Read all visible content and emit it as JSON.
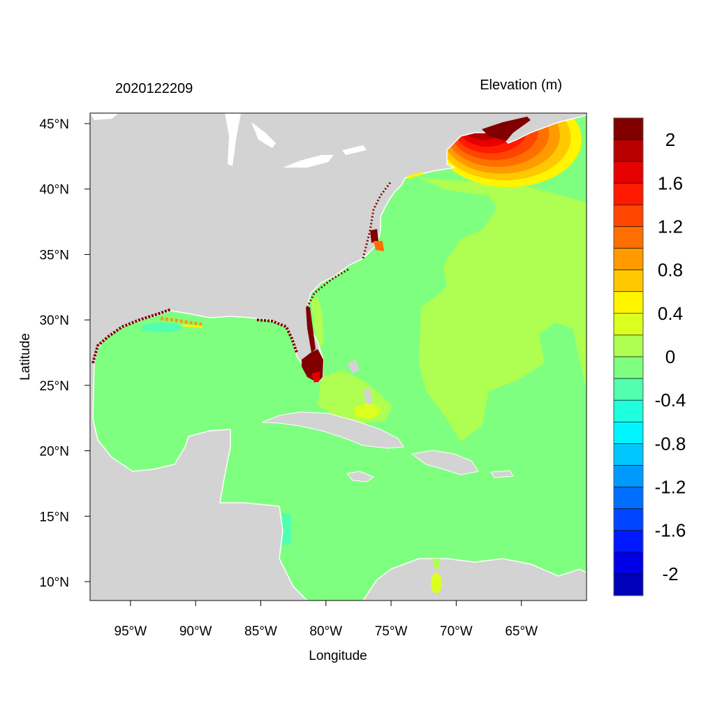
{
  "title_left": "2020122209",
  "title_right": "Elevation (m)",
  "x_axis": {
    "label": "Longitude",
    "ticks": [
      {
        "value": -95,
        "label": "95°W"
      },
      {
        "value": -90,
        "label": "90°W"
      },
      {
        "value": -85,
        "label": "85°W"
      },
      {
        "value": -80,
        "label": "80°W"
      },
      {
        "value": -75,
        "label": "75°W"
      },
      {
        "value": -70,
        "label": "70°W"
      },
      {
        "value": -65,
        "label": "65°W"
      }
    ],
    "range": [
      -98.1,
      -60
    ]
  },
  "y_axis": {
    "label": "Latitude",
    "ticks": [
      {
        "value": 10,
        "label": "10°N"
      },
      {
        "value": 15,
        "label": "15°N"
      },
      {
        "value": 20,
        "label": "20°N"
      },
      {
        "value": 25,
        "label": "25°N"
      },
      {
        "value": 30,
        "label": "30°N"
      },
      {
        "value": 35,
        "label": "35°N"
      },
      {
        "value": 40,
        "label": "40°N"
      },
      {
        "value": 45,
        "label": "45°N"
      }
    ],
    "range": [
      8.56,
      45.8
    ]
  },
  "colorbar": {
    "colors_top_to_bottom": [
      "#800000",
      "#B80000",
      "#E60000",
      "#FF1A00",
      "#FF4500",
      "#FF6F00",
      "#FF9A00",
      "#FFC800",
      "#FFF500",
      "#DBFF1F",
      "#AEFF52",
      "#7FFF7F",
      "#52FFAE",
      "#1FFFDB",
      "#00F5FF",
      "#00C8FF",
      "#009AFF",
      "#006FFF",
      "#0045FF",
      "#001AFF",
      "#0000E6",
      "#0000B8"
    ],
    "levels": [
      2.2,
      2.0,
      1.8,
      1.6,
      1.4,
      1.2,
      1.0,
      0.8,
      0.6,
      0.4,
      0.2,
      0,
      -0.2,
      -0.4,
      -0.6,
      -0.8,
      -1.0,
      -1.2,
      -1.4,
      -1.6,
      -1.8,
      -2.0,
      -2.2
    ],
    "labels": [
      {
        "value": 2,
        "label": "2"
      },
      {
        "value": 1.6,
        "label": "1.6"
      },
      {
        "value": 1.2,
        "label": "1.2"
      },
      {
        "value": 0.8,
        "label": "0.8"
      },
      {
        "value": 0.4,
        "label": "0.4"
      },
      {
        "value": 0,
        "label": "0"
      },
      {
        "value": -0.4,
        "label": "-0.4"
      },
      {
        "value": -0.8,
        "label": "-0.8"
      },
      {
        "value": -1.2,
        "label": "-1.2"
      },
      {
        "value": -1.6,
        "label": "-1.6"
      },
      {
        "value": -2,
        "label": "-2"
      }
    ]
  },
  "colors": {
    "land": "#D3D3D3",
    "ocean_zero": "#7FFF7F",
    "lakes": "#FFFFFF"
  }
}
